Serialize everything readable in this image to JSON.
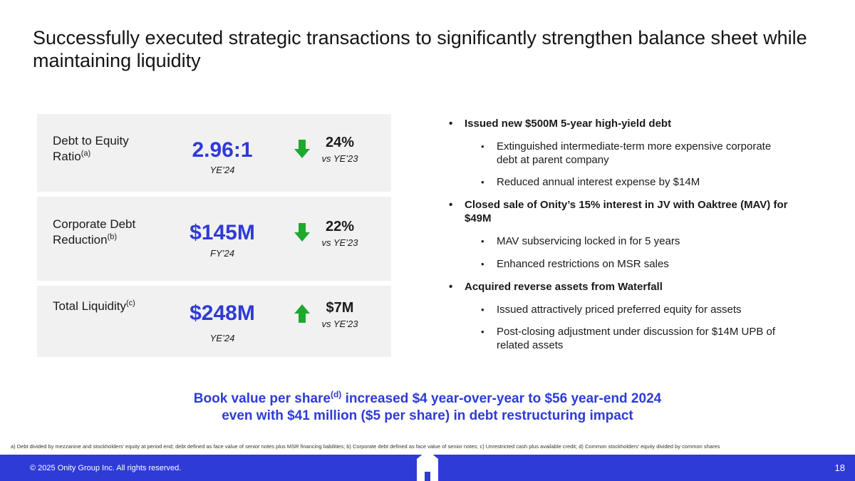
{
  "title": "Successfully executed strategic transactions to significantly strengthen balance sheet while maintaining liquidity",
  "metrics": [
    {
      "label": "Debt to Equity Ratio",
      "sup": "(a)",
      "value": "2.96:1",
      "period": "YE’24",
      "direction": "down",
      "change": "24%",
      "change_note": "vs YE’23"
    },
    {
      "label": "Corporate Debt Reduction",
      "sup": "(b)",
      "value": "$145M",
      "period": "FY’24",
      "direction": "down",
      "change": "22%",
      "change_note": "vs YE’23"
    },
    {
      "label": "Total Liquidity",
      "sup": "(c)",
      "value": "$248M",
      "period": "YE’24",
      "direction": "up",
      "change": "$7M",
      "change_note": "vs YE’23"
    }
  ],
  "bullets": [
    {
      "text": "Issued new $500M 5-year high-yield debt",
      "sub": [
        "Extinguished intermediate-term more expensive corporate debt at parent company",
        "Reduced annual interest expense by $14M"
      ]
    },
    {
      "text": "Closed sale of Onity’s 15% interest in JV with Oaktree (MAV) for $49M",
      "sub": [
        "MAV subservicing locked in for 5 years",
        "Enhanced restrictions on MSR sales"
      ]
    },
    {
      "text": "Acquired reverse assets from Waterfall",
      "sub": [
        "Issued attractively priced preferred equity for assets",
        "Post-closing adjustment under discussion for $14M UPB of related assets"
      ]
    }
  ],
  "highlight": {
    "line1_pre": "Book value per share",
    "line1_sup": "(d)",
    "line1_post": " increased $4 year-over-year to $56 year-end 2024",
    "line2": "even with $41 million ($5 per share) in debt restructuring impact"
  },
  "footnote": "a) Debt divided by mezzanine and stockholders’ equity at period end; debt defined as face value of senior notes plus MSR financing liabilities; b) Corporate debt defined as face value of senior notes; c) Unrestricted cash plus available credit; d) Common stockholders’ equity divided by common shares",
  "footer": {
    "copyright": "© 2025 Onity Group Inc. All rights reserved.",
    "page": "18"
  },
  "colors": {
    "accent": "#2e3bd6",
    "arrow_down": "#1fa82e",
    "arrow_up": "#1fa82e",
    "card_bg": "#f1f1f1"
  },
  "icons": {
    "down": "arrow-down-icon",
    "up": "arrow-up-icon",
    "logo": "onity-house-logo-icon"
  }
}
